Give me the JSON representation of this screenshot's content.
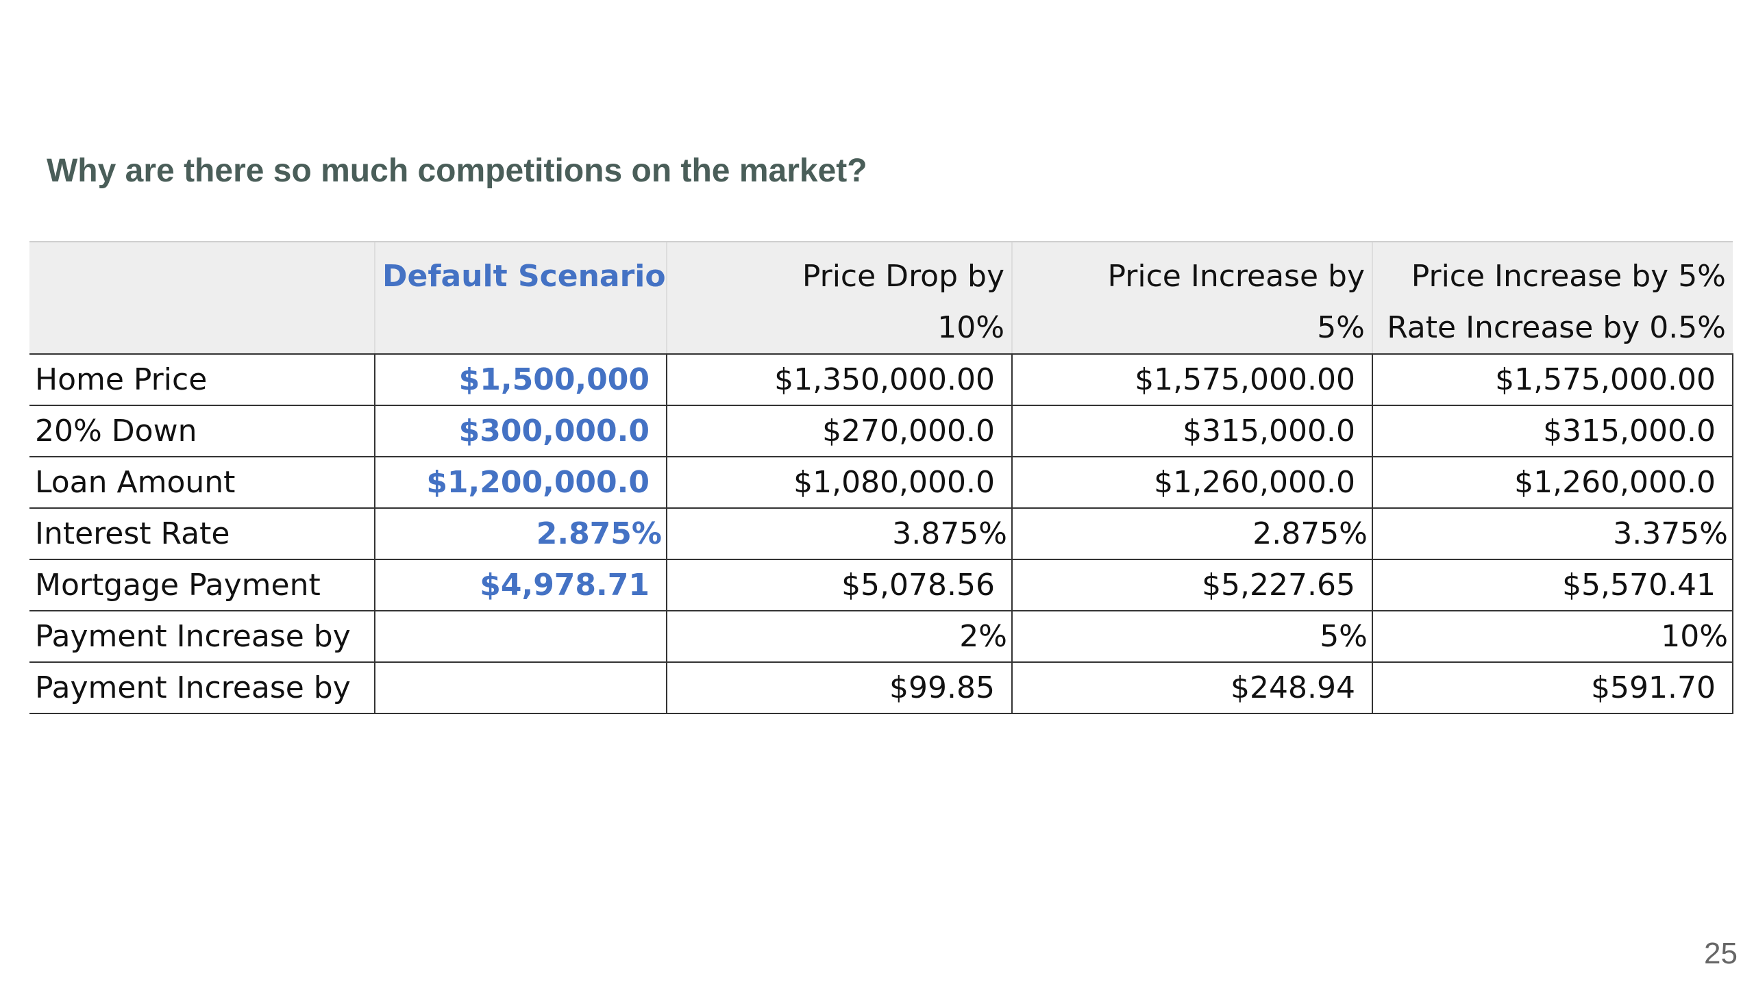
{
  "slide": {
    "title": "Why are there so much competitions on the market?",
    "page_number": "25"
  },
  "table": {
    "columns": [
      {
        "line1": "",
        "line2": ""
      },
      {
        "line1": "Default Scenario",
        "line2": ""
      },
      {
        "line1": "Price Drop by",
        "line2": "10%"
      },
      {
        "line1": "Price Increase by",
        "line2": "5%"
      },
      {
        "line1": "Price Increase by 5%",
        "line2": "Rate Increase by 0.5%"
      }
    ],
    "rows": [
      {
        "label": "Home Price",
        "default": "$1,500,000",
        "drop": "$1,350,000.00",
        "increase": "$1,575,000.00",
        "increase_rate": "$1,575,000.00"
      },
      {
        "label": "20% Down",
        "default": "$300,000.0",
        "drop": "$270,000.0",
        "increase": "$315,000.0",
        "increase_rate": "$315,000.0"
      },
      {
        "label": "Loan Amount",
        "default": "$1,200,000.0",
        "drop": "$1,080,000.0",
        "increase": "$1,260,000.0",
        "increase_rate": "$1,260,000.0"
      },
      {
        "label": "Interest Rate",
        "default": "2.875%",
        "drop": "3.875%",
        "increase": "2.875%",
        "increase_rate": "3.375%"
      },
      {
        "label": "Mortgage Payment",
        "default": "$4,978.71",
        "drop": "$5,078.56",
        "increase": "$5,227.65",
        "increase_rate": "$5,570.41"
      },
      {
        "label": "Payment Increase by",
        "default": "",
        "drop": "2%",
        "increase": "5%",
        "increase_rate": "10%"
      },
      {
        "label": "Payment Increase by",
        "default": "",
        "drop": "$99.85",
        "increase": "$248.94",
        "increase_rate": "$591.70"
      }
    ]
  },
  "colors": {
    "title": "#4a5e59",
    "default_scenario": "#4472c4",
    "header_background": "#eeeeee"
  }
}
